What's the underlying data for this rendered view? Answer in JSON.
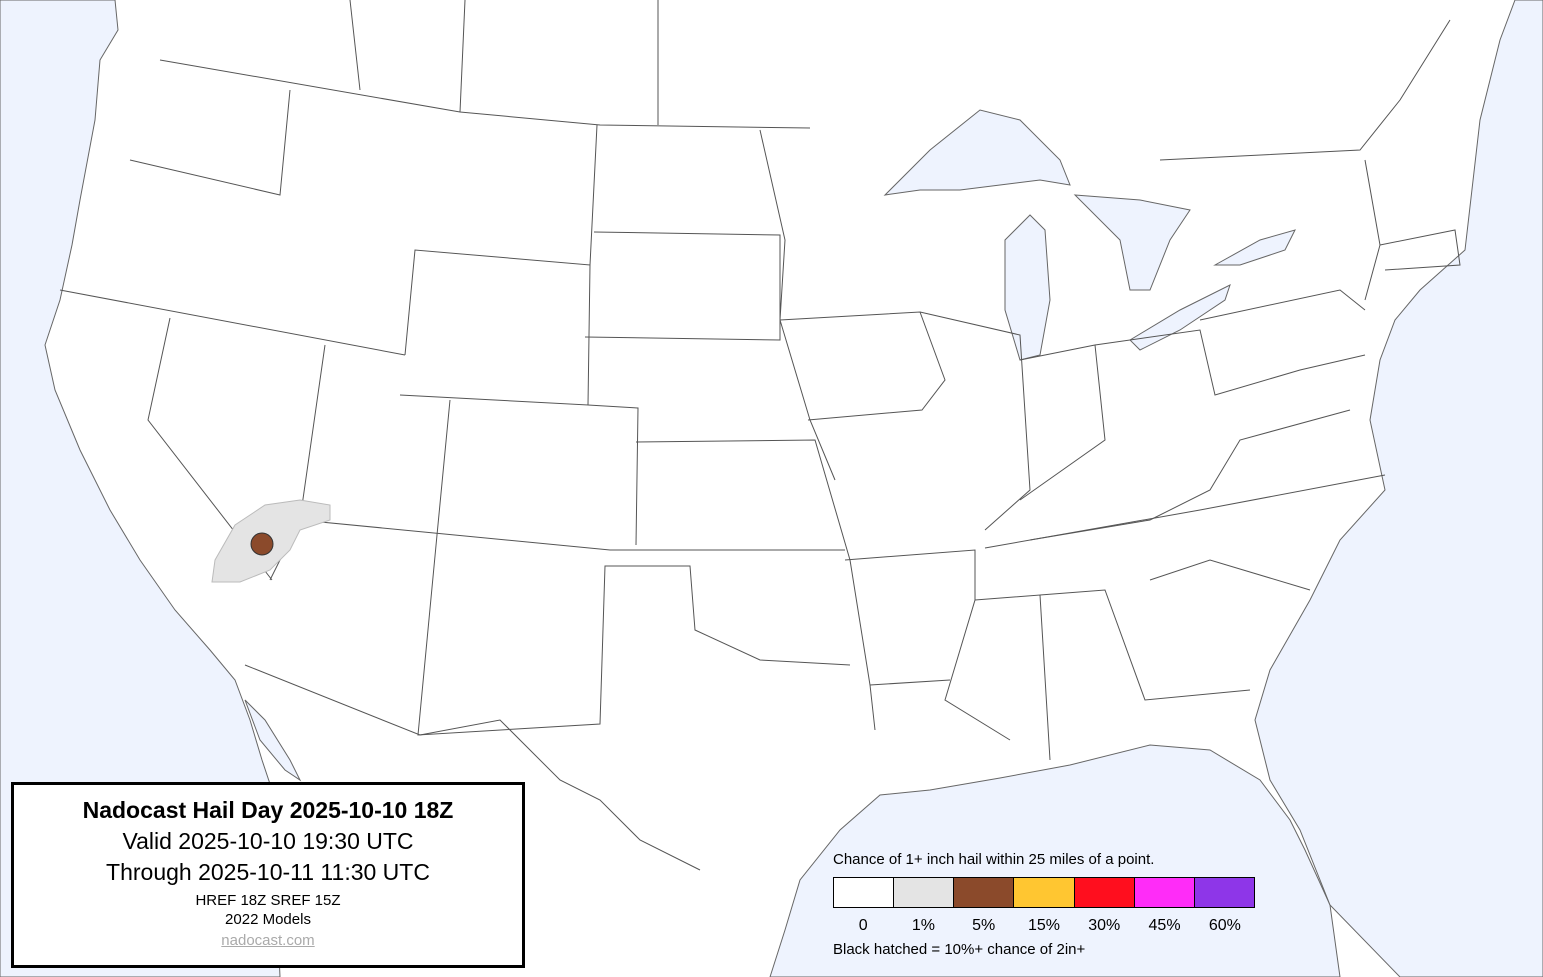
{
  "title_box": {
    "title": "Nadocast Hail Day 2025-10-10 18Z",
    "valid": "Valid 2025-10-10 19:30 UTC",
    "through": "Through 2025-10-11 11:30 UTC",
    "models": "HREF 18Z SREF 15Z",
    "model_year": "2022 Models",
    "site": "nadocast.com"
  },
  "legend": {
    "caption": "Chance of 1+ inch hail within 25 miles of a point.",
    "bins": [
      {
        "label": "0",
        "color": "#ffffff"
      },
      {
        "label": "1%",
        "color": "#e4e4e4"
      },
      {
        "label": "5%",
        "color": "#8b4a2b"
      },
      {
        "label": "15%",
        "color": "#ffc631"
      },
      {
        "label": "30%",
        "color": "#ff0e1e"
      },
      {
        "label": "45%",
        "color": "#ff2cf8"
      },
      {
        "label": "60%",
        "color": "#8e36e8"
      }
    ],
    "note": "Black hatched = 10%+ chance of 2in+"
  },
  "map": {
    "water_color": "#eef3fe",
    "land_color": "#ffffff",
    "forecast_areas": [
      {
        "level": "1%",
        "region": "southern Nevada / southern Utah / Arizona border"
      },
      {
        "level": "5%",
        "region": "southern Nevada"
      }
    ]
  }
}
